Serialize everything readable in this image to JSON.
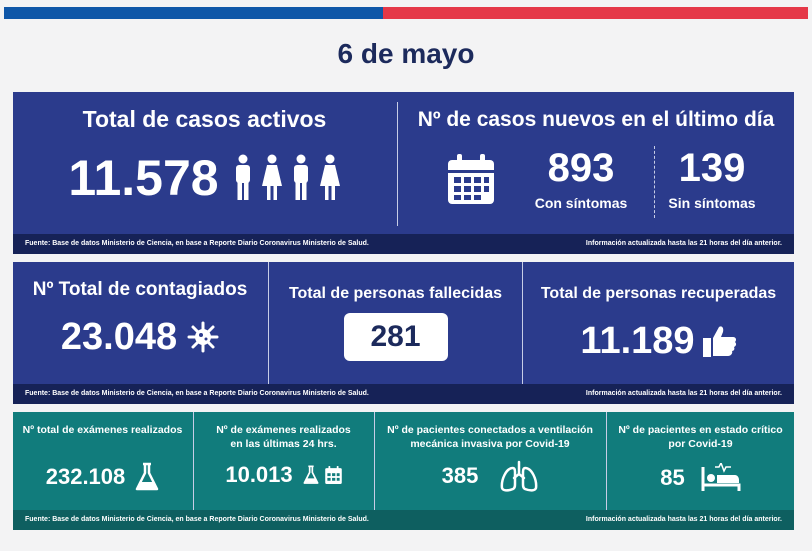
{
  "date": "6 de mayo",
  "panel1": {
    "active_title": "Total de casos activos",
    "active_value": "11.578",
    "new_title": "Nº de casos nuevos en el último día",
    "new_symptomatic_value": "893",
    "new_symptomatic_label": "Con síntomas",
    "new_asymptomatic_value": "139",
    "new_asymptomatic_label": "Sin síntomas",
    "source": "Fuente: Base de datos Ministerio de Ciencia, en base a Reporte Diario Coronavirus Ministerio de Salud.",
    "updated": "Información actualizada hasta las 21 horas  del día anterior."
  },
  "panel2": {
    "total_title": "Nº Total de contagiados",
    "total_value": "23.048",
    "deaths_title": "Total de personas fallecidas",
    "deaths_value": "281",
    "recovered_title": "Total de personas recuperadas",
    "recovered_value": "11.189",
    "source": "Fuente: Base de datos Ministerio de Ciencia, en base a Reporte Diario Coronavirus Ministerio de Salud.",
    "updated": "Información actualizada hasta las 21 horas  del día anterior."
  },
  "panel3": {
    "exams_title": "Nº total de exámenes realizados",
    "exams_value": "232.108",
    "exams24_title_1": "Nº de exámenes realizados",
    "exams24_title_2": "en las últimas 24 hrs.",
    "exams24_value": "10.013",
    "ventilation_title_1": "Nº de pacientes conectados a ventilación",
    "ventilation_title_2": "mecánica invasiva por Covid-19",
    "ventilation_value": "385",
    "critical_title_1": "Nº de pacientes en estado crítico",
    "critical_title_2": "por Covid-19",
    "critical_value": "85",
    "source": "Fuente: Base de datos Ministerio de Ciencia, en base a Reporte Diario Coronavirus Ministerio de Salud.",
    "updated": "Información actualizada hasta las 21 horas  del día anterior."
  },
  "icons": [
    "person-icon",
    "calendar-icon",
    "virus-icon",
    "thumbs-up-icon",
    "flask-icon",
    "lungs-icon",
    "hospital-bed-icon"
  ],
  "colors": {
    "navy_panel": "#2b3b8c",
    "teal_panel": "#117c7c",
    "title_navy": "#1c2a5c",
    "top_blue": "#0f57a8",
    "top_red": "#e53848"
  }
}
